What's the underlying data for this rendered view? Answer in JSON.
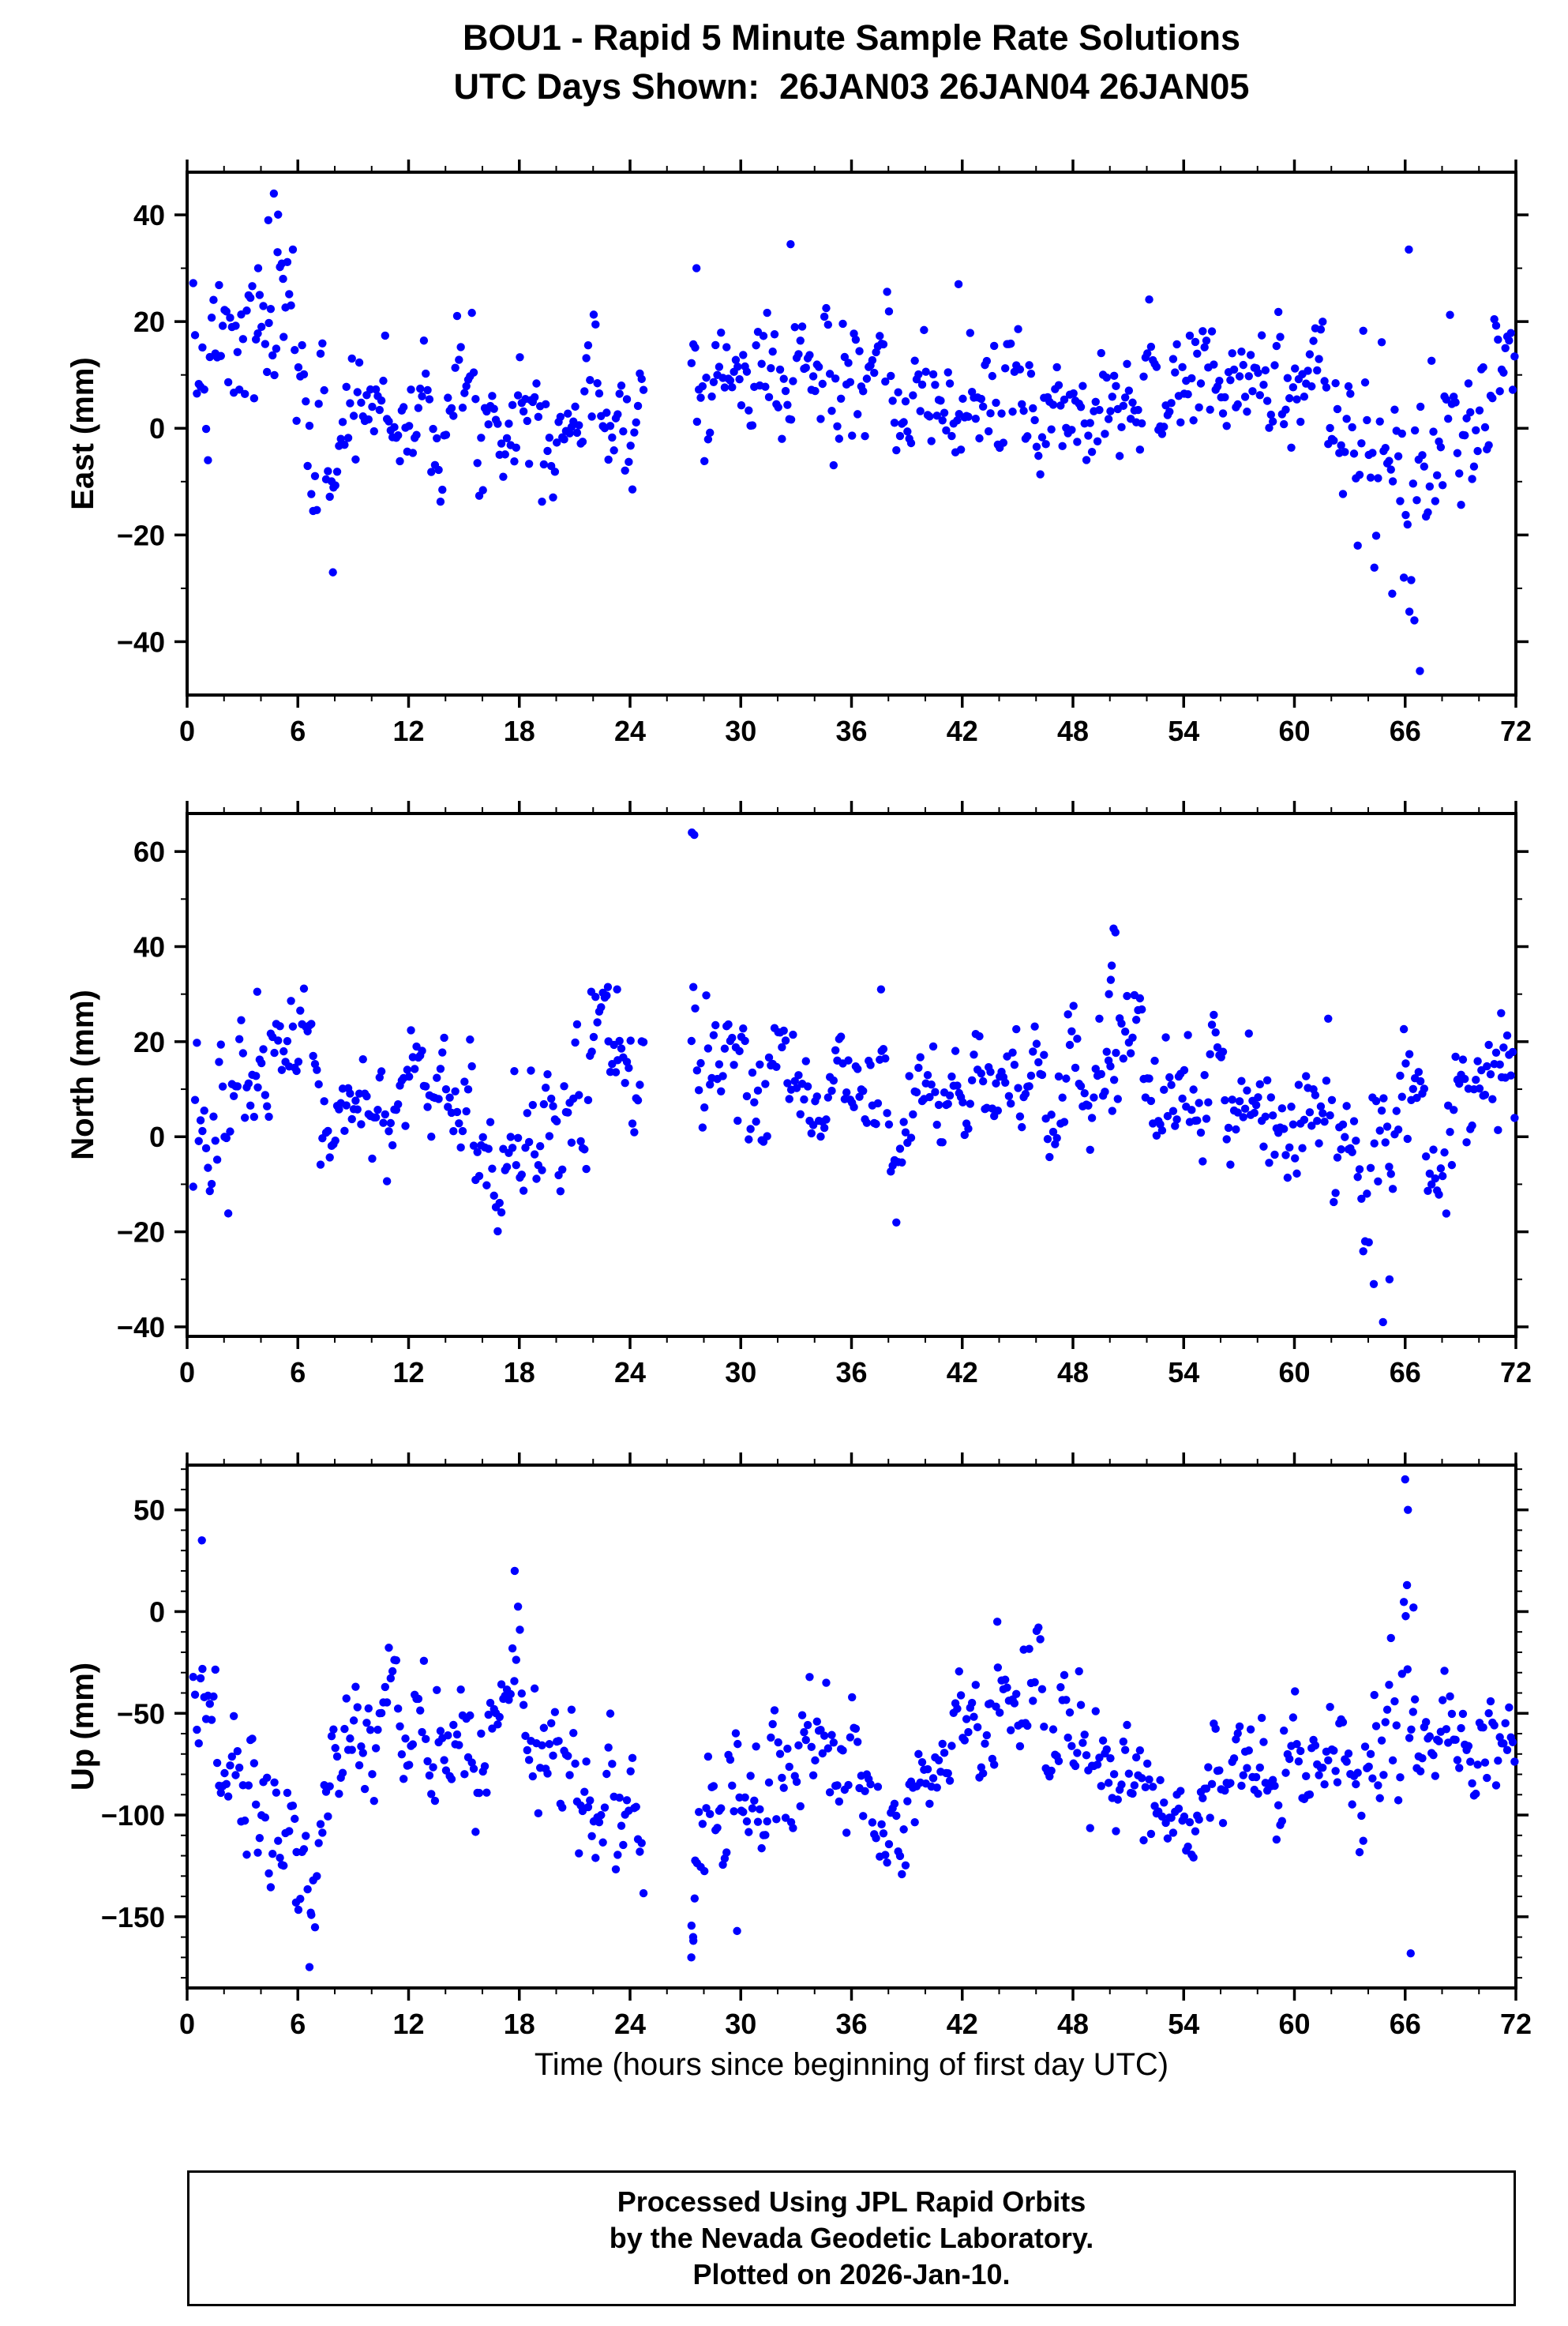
{
  "title": {
    "line1": "BOU1 - Rapid 5 Minute Sample Rate Solutions",
    "line2": "UTC Days Shown:  26JAN03 26JAN04 26JAN05"
  },
  "xlabel": "Time (hours since beginning of first day UTC)",
  "footer": {
    "line1": "Processed Using JPL Rapid Orbits",
    "line2": "by the Nevada Geodetic Laboratory.",
    "line3": "Plotted on 2026-Jan-10."
  },
  "marker_color": "#0000ff",
  "axis_color": "#000000",
  "chart_data": [
    {
      "type": "scatter",
      "panel": "east",
      "ylabel": "East (mm)",
      "xlim": [
        0,
        72
      ],
      "ylim": [
        -50,
        48
      ],
      "xticks": [
        0,
        6,
        12,
        18,
        24,
        30,
        36,
        42,
        48,
        54,
        60,
        66,
        72
      ],
      "yticks": [
        -40,
        -20,
        0,
        20,
        40
      ],
      "x_minor_step": 2,
      "y_minor_step": 10,
      "legend": "none",
      "grid": false,
      "synthesis": {
        "seed": 7,
        "x_start": 0.33,
        "x_end": 71.95,
        "step": 0.1,
        "gaps": [
          [
            24.78,
            27.28
          ]
        ],
        "mean_knots": [
          [
            0.3,
            8
          ],
          [
            2,
            12
          ],
          [
            3.5,
            16
          ],
          [
            5,
            18
          ],
          [
            6,
            12
          ],
          [
            7,
            -2
          ],
          [
            7.8,
            -5
          ],
          [
            9,
            4
          ],
          [
            10.5,
            6
          ],
          [
            12,
            2
          ],
          [
            13.5,
            6
          ],
          [
            15,
            5
          ],
          [
            16.5,
            3
          ],
          [
            18,
            6
          ],
          [
            19.5,
            4
          ],
          [
            21,
            2
          ],
          [
            22.5,
            6
          ],
          [
            24,
            4
          ],
          [
            27.4,
            14
          ],
          [
            28.5,
            10
          ],
          [
            30,
            8
          ],
          [
            31.5,
            10
          ],
          [
            33,
            11
          ],
          [
            34.5,
            9
          ],
          [
            36,
            9
          ],
          [
            37.5,
            5
          ],
          [
            39,
            3
          ],
          [
            40.5,
            4
          ],
          [
            42,
            4
          ],
          [
            43.5,
            6
          ],
          [
            45,
            5
          ],
          [
            46.5,
            3
          ],
          [
            48,
            4
          ],
          [
            49.5,
            7
          ],
          [
            51,
            8
          ],
          [
            52.5,
            9
          ],
          [
            54,
            8
          ],
          [
            55.5,
            7
          ],
          [
            57,
            8
          ],
          [
            58.5,
            9
          ],
          [
            60,
            10
          ],
          [
            61.5,
            7
          ],
          [
            63,
            0
          ],
          [
            64.5,
            -8
          ],
          [
            66,
            -14
          ],
          [
            67,
            -9
          ],
          [
            68,
            -4
          ],
          [
            69.5,
            2
          ],
          [
            71,
            6
          ],
          [
            72,
            8
          ]
        ],
        "sigma_knots": [
          [
            0.3,
            8
          ],
          [
            3,
            9
          ],
          [
            6,
            9
          ],
          [
            7.8,
            8
          ],
          [
            10,
            7
          ],
          [
            15,
            7
          ],
          [
            20,
            6.5
          ],
          [
            24,
            6
          ],
          [
            27.4,
            7
          ],
          [
            30,
            7
          ],
          [
            36,
            7
          ],
          [
            42,
            6.5
          ],
          [
            48,
            6
          ],
          [
            54,
            6
          ],
          [
            60,
            6
          ],
          [
            63,
            8
          ],
          [
            66,
            13
          ],
          [
            68,
            9
          ],
          [
            70,
            7
          ],
          [
            72,
            6
          ]
        ],
        "outliers": [
          [
            4.7,
            44
          ],
          [
            4.4,
            39
          ],
          [
            4.9,
            33
          ],
          [
            3.85,
            30
          ],
          [
            5.2,
            28
          ],
          [
            7.9,
            -27
          ],
          [
            27.6,
            30
          ],
          [
            32.7,
            34.5
          ],
          [
            66.2,
            33.5
          ],
          [
            66.8,
            -45.5
          ],
          [
            66.5,
            -36
          ],
          [
            65.3,
            -31
          ],
          [
            41.8,
            27
          ]
        ]
      }
    },
    {
      "type": "scatter",
      "panel": "north",
      "ylabel": "North (mm)",
      "xlim": [
        0,
        72
      ],
      "ylim": [
        -42,
        68
      ],
      "xticks": [
        0,
        6,
        12,
        18,
        24,
        30,
        36,
        42,
        48,
        54,
        60,
        66,
        72
      ],
      "yticks": [
        -40,
        -20,
        0,
        20,
        40,
        60
      ],
      "x_minor_step": 2,
      "y_minor_step": 10,
      "legend": "none",
      "grid": false,
      "synthesis": {
        "seed": 13,
        "x_start": 0.33,
        "x_end": 71.95,
        "step": 0.1,
        "gaps": [
          [
            24.78,
            27.28
          ]
        ],
        "mean_knots": [
          [
            0.3,
            -6
          ],
          [
            1.5,
            2
          ],
          [
            3,
            10
          ],
          [
            4.5,
            13
          ],
          [
            6,
            13
          ],
          [
            7.5,
            4
          ],
          [
            9,
            3
          ],
          [
            10.5,
            7
          ],
          [
            12,
            10
          ],
          [
            13.5,
            7
          ],
          [
            15,
            1
          ],
          [
            16.5,
            -4
          ],
          [
            18,
            -3
          ],
          [
            19.5,
            2
          ],
          [
            21,
            10
          ],
          [
            22.5,
            17
          ],
          [
            24,
            12
          ],
          [
            27.4,
            14
          ],
          [
            29,
            12
          ],
          [
            30.5,
            14
          ],
          [
            32,
            13
          ],
          [
            33.5,
            12
          ],
          [
            35,
            11
          ],
          [
            36.5,
            9
          ],
          [
            38,
            7
          ],
          [
            39.5,
            3
          ],
          [
            41,
            6
          ],
          [
            42.5,
            12
          ],
          [
            44,
            9
          ],
          [
            45.5,
            7
          ],
          [
            47,
            8
          ],
          [
            48.5,
            9
          ],
          [
            50,
            13
          ],
          [
            51.5,
            11
          ],
          [
            53,
            9
          ],
          [
            54.5,
            8
          ],
          [
            56,
            8
          ],
          [
            57.5,
            9
          ],
          [
            59,
            8
          ],
          [
            60.5,
            8
          ],
          [
            62,
            4
          ],
          [
            63.5,
            -4
          ],
          [
            65,
            -10
          ],
          [
            66.5,
            -2
          ],
          [
            68,
            2
          ],
          [
            69.5,
            5
          ],
          [
            71,
            11
          ],
          [
            72,
            12
          ]
        ],
        "sigma_knots": [
          [
            0.3,
            8
          ],
          [
            4,
            8
          ],
          [
            8,
            8
          ],
          [
            12,
            7
          ],
          [
            16,
            7
          ],
          [
            20,
            8
          ],
          [
            24,
            7
          ],
          [
            27.4,
            9
          ],
          [
            32,
            7
          ],
          [
            38,
            8
          ],
          [
            44,
            7
          ],
          [
            50,
            8
          ],
          [
            56,
            7
          ],
          [
            62,
            7
          ],
          [
            65,
            11
          ],
          [
            68,
            8
          ],
          [
            72,
            6
          ]
        ],
        "outliers": [
          [
            27.35,
            64
          ],
          [
            27.48,
            63.5
          ],
          [
            50.2,
            43.8
          ],
          [
            50.3,
            43
          ],
          [
            50.1,
            36
          ],
          [
            50.05,
            33
          ],
          [
            49.95,
            30
          ],
          [
            22.8,
            31.5
          ],
          [
            3.8,
            30.5
          ],
          [
            21.9,
            30.5
          ],
          [
            37.6,
            31
          ],
          [
            64.8,
            -39
          ],
          [
            64.3,
            -31
          ],
          [
            65.15,
            -30
          ],
          [
            71.2,
            26
          ],
          [
            23.3,
            31
          ]
        ]
      }
    },
    {
      "type": "scatter",
      "panel": "up",
      "ylabel": "Up (mm)",
      "xlim": [
        0,
        72
      ],
      "ylim": [
        -185,
        72
      ],
      "xticks": [
        0,
        6,
        12,
        18,
        24,
        30,
        36,
        42,
        48,
        54,
        60,
        66,
        72
      ],
      "yticks": [
        -150,
        -100,
        -50,
        0,
        50
      ],
      "x_minor_step": 2,
      "y_minor_step": 10,
      "legend": "none",
      "grid": false,
      "synthesis": {
        "seed": 29,
        "x_start": 0.33,
        "x_end": 71.95,
        "step": 0.1,
        "gaps": [
          [
            24.78,
            27.28
          ]
        ],
        "mean_knots": [
          [
            0.3,
            -48
          ],
          [
            1.5,
            -58
          ],
          [
            3,
            -92
          ],
          [
            4.5,
            -108
          ],
          [
            6,
            -112
          ],
          [
            7.5,
            -90
          ],
          [
            9,
            -62
          ],
          [
            10.5,
            -50
          ],
          [
            12,
            -58
          ],
          [
            13.5,
            -70
          ],
          [
            15,
            -72
          ],
          [
            16.5,
            -58
          ],
          [
            18,
            -48
          ],
          [
            19.5,
            -68
          ],
          [
            21,
            -88
          ],
          [
            22.5,
            -98
          ],
          [
            24,
            -92
          ],
          [
            27.4,
            -115
          ],
          [
            28.5,
            -85
          ],
          [
            30,
            -80
          ],
          [
            31.5,
            -88
          ],
          [
            33,
            -72
          ],
          [
            34.5,
            -62
          ],
          [
            36,
            -68
          ],
          [
            37.5,
            -88
          ],
          [
            39,
            -95
          ],
          [
            40.5,
            -80
          ],
          [
            42,
            -60
          ],
          [
            43.5,
            -45
          ],
          [
            45,
            -42
          ],
          [
            46.5,
            -52
          ],
          [
            48,
            -62
          ],
          [
            49.5,
            -72
          ],
          [
            51,
            -85
          ],
          [
            53,
            -100
          ],
          [
            54.5,
            -98
          ],
          [
            56,
            -85
          ],
          [
            57.5,
            -75
          ],
          [
            59,
            -80
          ],
          [
            60.5,
            -78
          ],
          [
            62,
            -72
          ],
          [
            63.5,
            -68
          ],
          [
            65,
            -52
          ],
          [
            66,
            -35
          ],
          [
            67,
            -55
          ],
          [
            68.5,
            -58
          ],
          [
            70,
            -65
          ],
          [
            71,
            -70
          ],
          [
            72,
            -68
          ]
        ],
        "sigma_knots": [
          [
            0.3,
            18
          ],
          [
            3,
            20
          ],
          [
            6,
            20
          ],
          [
            9,
            17
          ],
          [
            12,
            17
          ],
          [
            16,
            17
          ],
          [
            20,
            17
          ],
          [
            24,
            16
          ],
          [
            27.4,
            26
          ],
          [
            30,
            20
          ],
          [
            33,
            17
          ],
          [
            36,
            17
          ],
          [
            40,
            16
          ],
          [
            44,
            14
          ],
          [
            48,
            15
          ],
          [
            52,
            15
          ],
          [
            56,
            14
          ],
          [
            60,
            14
          ],
          [
            63,
            14
          ],
          [
            65.5,
            28
          ],
          [
            67,
            15
          ],
          [
            70,
            13
          ],
          [
            72,
            11
          ]
        ],
        "outliers": [
          [
            0.8,
            35
          ],
          [
            17.75,
            20
          ],
          [
            27.32,
            -170
          ],
          [
            27.42,
            -160
          ],
          [
            27.5,
            -141
          ],
          [
            29.8,
            -157
          ],
          [
            5.9,
            -143
          ],
          [
            6.7,
            -148
          ],
          [
            66.0,
            65
          ],
          [
            66.15,
            50
          ],
          [
            66.3,
            -168
          ],
          [
            66.1,
            13
          ],
          [
            43.9,
            -5
          ],
          [
            66.45,
            2
          ]
        ]
      }
    }
  ]
}
